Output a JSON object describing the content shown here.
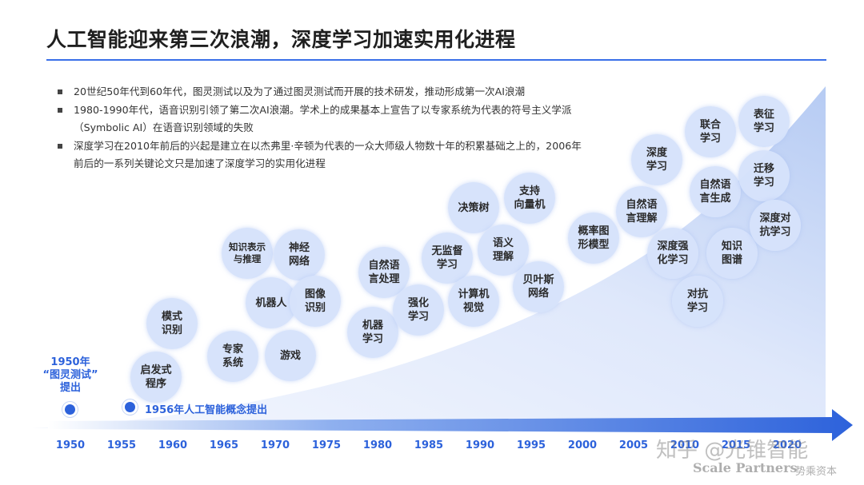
{
  "title": "人工智能迎来第三次浪潮，深度学习加速实用化进程",
  "bullets": [
    "20世纪50年代到60年代，图灵测试以及为了通过图灵测试而开展的技术研发，推动形成第一次AI浪潮",
    "1980-1990年代，语音识别引领了第二次AI浪潮。学术上的成果基本上宣告了以专家系统为代表的符号主义学派（Symbolic AI）在语音识别领域的失败",
    "深度学习在2010年前后的兴起是建立在以杰弗里·辛顿为代表的一众大师级人物数十年的积累基础之上的，2006年前后的一系列关键论文只是加速了深度学习的实用化进程"
  ],
  "years": [
    "1950",
    "1955",
    "1960",
    "1965",
    "1970",
    "1975",
    "1980",
    "1985",
    "1990",
    "1995",
    "2000",
    "2005",
    "2010",
    "2015",
    "2020"
  ],
  "milestones": {
    "m1950": "1950年\n“图灵测试”\n提出",
    "m1956": "1956年人工智能概念提出"
  },
  "bubbles": [
    "启发式\n程序",
    "模式\n识别",
    "专家\n系统",
    "知识表示\n与推理",
    "机器人",
    "神经\n网络",
    "游戏",
    "图像\n识别",
    "自然语\n言处理",
    "机器\n学习",
    "强化\n学习",
    "无监督\n学习",
    "决策树",
    "计算机\n视觉",
    "语义\n理解",
    "支持\n向量机",
    "贝叶斯\n网络",
    "概率图\n形模型",
    "自然语\n言理解",
    "深度\n学习",
    "深度强\n化学习",
    "联合\n学习",
    "自然语\n言生成",
    "知识\n图谱",
    "对抗\n学习",
    "表征\n学习",
    "迁移\n学习",
    "深度对\n抗学习"
  ],
  "watermark": {
    "cn": "知乎 @光锥智能",
    "en": "Scale Partners",
    "en_cn": "势乘资本"
  },
  "colors": {
    "accent": "#2d62db",
    "bubble": "#d6e2fb",
    "wave_light": "#e8effc",
    "wave_dark": "#b9cdf4"
  }
}
